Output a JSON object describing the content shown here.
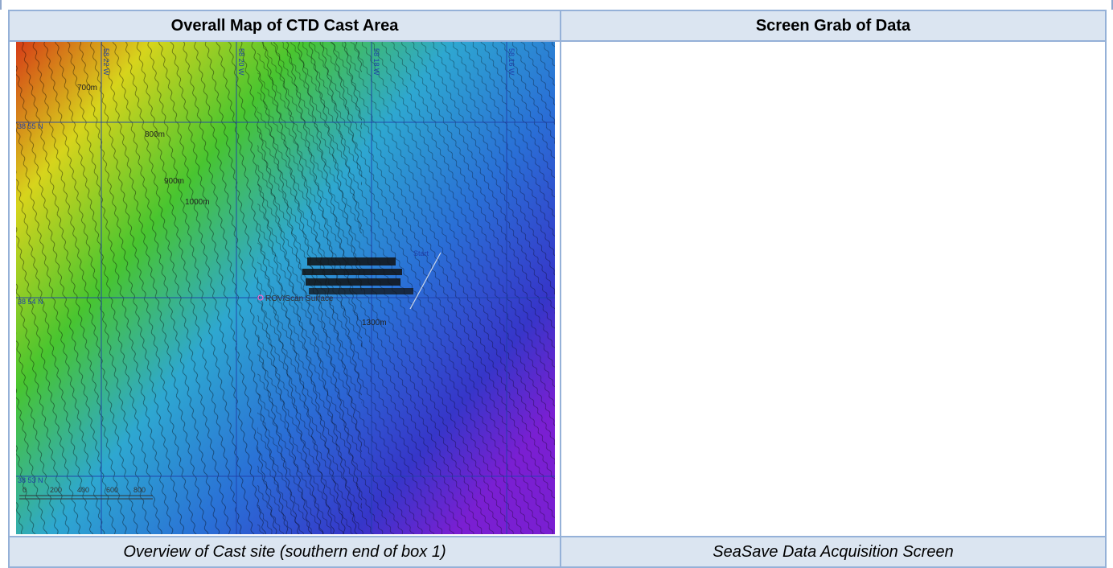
{
  "table": {
    "headers": [
      "Overall Map of CTD Cast Area",
      "Screen Grab of Data"
    ],
    "captions": [
      "Overview of Cast site (southern end of box 1)",
      "SeaSave Data Acquisition Screen"
    ]
  },
  "map": {
    "description_icon": "bathymetry-contour-map",
    "depth_labels": [
      "700m",
      "800m",
      "900m",
      "1000m",
      "1300m"
    ],
    "grid_labels_top": [
      "58 22 W",
      "58 20 W",
      "58 18 W",
      "58 16 W"
    ],
    "grid_labels_left": [
      "38 55 N",
      "38 54 N",
      "38 53 N"
    ],
    "site_label": "ROV/Scan Surface",
    "start_label": "Start",
    "scale_labels": [
      "0",
      "200",
      "400",
      "600",
      "800"
    ],
    "colors": {
      "shallow": "#d63b17",
      "mid_high": "#d7d41c",
      "mid": "#48c530",
      "mid_low": "#2ea7d1",
      "deep": "#7a1fd2"
    }
  }
}
